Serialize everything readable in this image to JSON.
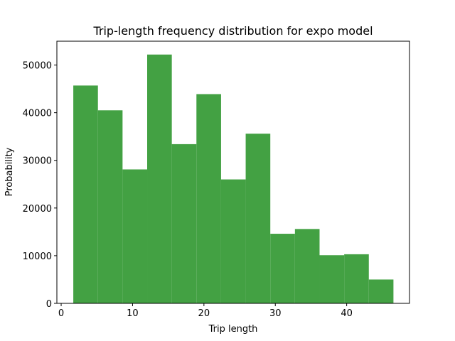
{
  "chart_data": {
    "type": "bar",
    "title": "Trip-length frequency distribution for expo model",
    "xlabel": "Trip length",
    "ylabel": "Probability",
    "xlim": [
      -0.6,
      48.8
    ],
    "ylim": [
      0,
      55000
    ],
    "xticks": [
      0,
      10,
      20,
      30,
      40
    ],
    "yticks": [
      0,
      10000,
      20000,
      30000,
      40000,
      50000
    ],
    "bar_color": "#43a143",
    "bins": [
      {
        "x0": 1.7,
        "x1": 5.15,
        "value": 45700
      },
      {
        "x0": 5.15,
        "x1": 8.6,
        "value": 40500
      },
      {
        "x0": 8.6,
        "x1": 12.05,
        "value": 28100
      },
      {
        "x0": 12.05,
        "x1": 15.5,
        "value": 52200
      },
      {
        "x0": 15.5,
        "x1": 18.95,
        "value": 33400
      },
      {
        "x0": 18.95,
        "x1": 22.4,
        "value": 43900
      },
      {
        "x0": 22.4,
        "x1": 25.85,
        "value": 26000
      },
      {
        "x0": 25.85,
        "x1": 29.3,
        "value": 35600
      },
      {
        "x0": 29.3,
        "x1": 32.75,
        "value": 14600
      },
      {
        "x0": 32.75,
        "x1": 36.2,
        "value": 15600
      },
      {
        "x0": 36.2,
        "x1": 39.65,
        "value": 10100
      },
      {
        "x0": 39.65,
        "x1": 43.1,
        "value": 10300
      },
      {
        "x0": 43.1,
        "x1": 46.55,
        "value": 5000
      }
    ]
  }
}
